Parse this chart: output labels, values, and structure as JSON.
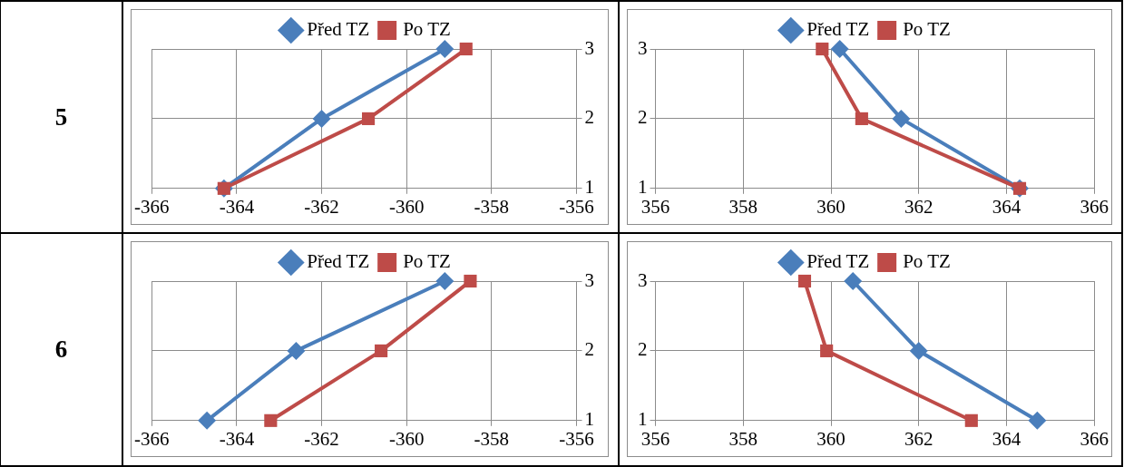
{
  "chart_data": [
    {
      "type": "other",
      "title": "5"
    },
    {
      "type": "line",
      "legend": "top",
      "grid": true,
      "xlim": [
        -366,
        -356
      ],
      "xticks": [
        -366,
        -364,
        -362,
        -360,
        -358,
        -356
      ],
      "y2lim": [
        1,
        3
      ],
      "y2ticks": [
        1,
        2,
        3
      ],
      "series": [
        {
          "name": "Před TZ",
          "color": "#4a7ebb",
          "marker": "diamond",
          "axis": "y2",
          "x": [
            -364.3,
            -362.0,
            -359.1
          ],
          "values": [
            1,
            2,
            3
          ]
        },
        {
          "name": "Po TZ",
          "color": "#be4b48",
          "marker": "square",
          "axis": "y2",
          "x": [
            -364.3,
            -360.9,
            -358.6
          ],
          "values": [
            1,
            2,
            3
          ]
        }
      ]
    },
    {
      "type": "line",
      "legend": "top",
      "grid": true,
      "xlim": [
        356,
        366
      ],
      "xticks": [
        356,
        358,
        360,
        362,
        364,
        366
      ],
      "ylim": [
        1,
        3
      ],
      "yticks": [
        1,
        2,
        3
      ],
      "series": [
        {
          "name": "Před TZ",
          "color": "#4a7ebb",
          "marker": "diamond",
          "x": [
            364.3,
            361.6,
            360.2
          ],
          "values": [
            1,
            2,
            3
          ]
        },
        {
          "name": "Po TZ",
          "color": "#be4b48",
          "marker": "square",
          "x": [
            364.3,
            360.7,
            359.8
          ],
          "values": [
            1,
            2,
            3
          ]
        }
      ]
    },
    {
      "type": "other",
      "title": "6"
    },
    {
      "type": "line",
      "legend": "top",
      "grid": true,
      "xlim": [
        -366,
        -356
      ],
      "xticks": [
        -366,
        -364,
        -362,
        -360,
        -358,
        -356
      ],
      "y2lim": [
        1,
        3
      ],
      "y2ticks": [
        1,
        2,
        3
      ],
      "series": [
        {
          "name": "Před TZ",
          "color": "#4a7ebb",
          "marker": "diamond",
          "axis": "y2",
          "x": [
            -364.7,
            -362.6,
            -359.1
          ],
          "values": [
            1,
            2,
            3
          ]
        },
        {
          "name": "Po TZ",
          "color": "#be4b48",
          "marker": "square",
          "axis": "y2",
          "x": [
            -363.2,
            -360.6,
            -358.5
          ],
          "values": [
            1,
            2,
            3
          ]
        }
      ]
    },
    {
      "type": "line",
      "legend": "top",
      "grid": true,
      "xlim": [
        356,
        366
      ],
      "xticks": [
        356,
        358,
        360,
        362,
        364,
        366
      ],
      "ylim": [
        1,
        3
      ],
      "yticks": [
        1,
        2,
        3
      ],
      "series": [
        {
          "name": "Před TZ",
          "color": "#4a7ebb",
          "marker": "diamond",
          "x": [
            364.7,
            362.0,
            360.5
          ],
          "values": [
            1,
            2,
            3
          ]
        },
        {
          "name": "Po TZ",
          "color": "#be4b48",
          "marker": "square",
          "x": [
            363.2,
            359.9,
            359.4
          ],
          "values": [
            1,
            2,
            3
          ]
        }
      ]
    }
  ]
}
